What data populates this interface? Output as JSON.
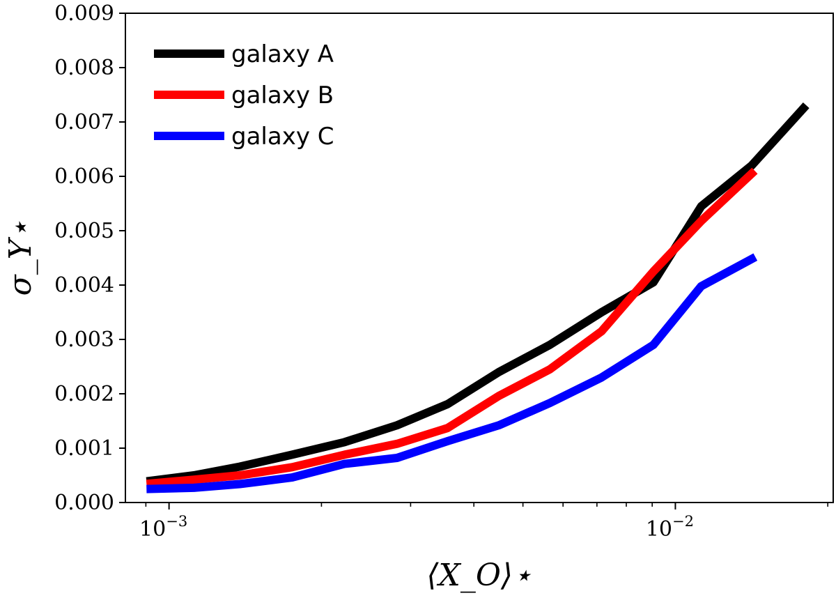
{
  "chart_data": {
    "type": "line",
    "title": "",
    "xscale": "log",
    "xlim": [
      0.00082,
      0.0205
    ],
    "ylim": [
      0,
      0.009
    ],
    "xlabel": "⟨X_O⟩⋆",
    "ylabel": "σ_Y⋆",
    "grid": false,
    "legend_position": "top-left",
    "x_major_ticks": [
      {
        "value": 0.001,
        "base": "10",
        "exp": "−3"
      },
      {
        "value": 0.01,
        "base": "10",
        "exp": "−2"
      }
    ],
    "x_minor_ticks": [
      0.0009,
      0.002,
      0.003,
      0.004,
      0.005,
      0.006,
      0.007,
      0.008,
      0.009,
      0.02
    ],
    "y_ticks": [
      {
        "value": 0.0,
        "label": "0.000"
      },
      {
        "value": 0.001,
        "label": "0.001"
      },
      {
        "value": 0.002,
        "label": "0.002"
      },
      {
        "value": 0.003,
        "label": "0.003"
      },
      {
        "value": 0.004,
        "label": "0.004"
      },
      {
        "value": 0.005,
        "label": "0.005"
      },
      {
        "value": 0.006,
        "label": "0.006"
      },
      {
        "value": 0.007,
        "label": "0.007"
      },
      {
        "value": 0.008,
        "label": "0.008"
      },
      {
        "value": 0.009,
        "label": "0.009"
      }
    ],
    "series": [
      {
        "name": "galaxy A",
        "color": "#000000",
        "x": [
          0.00092,
          0.00112,
          0.00138,
          0.00175,
          0.00222,
          0.00282,
          0.00355,
          0.00448,
          0.00565,
          0.00715,
          0.00905,
          0.01125,
          0.01415,
          0.0179
        ],
        "y": [
          0.0004,
          0.0005,
          0.00066,
          0.00088,
          0.00111,
          0.00142,
          0.00181,
          0.0024,
          0.0029,
          0.0035,
          0.00405,
          0.00545,
          0.0062,
          0.00725
        ]
      },
      {
        "name": "galaxy B",
        "color": "#ff0000",
        "x": [
          0.00092,
          0.00112,
          0.00138,
          0.00175,
          0.00222,
          0.00282,
          0.00355,
          0.00448,
          0.00565,
          0.00715,
          0.00905,
          0.01125,
          0.01415
        ],
        "y": [
          0.00035,
          0.00042,
          0.0005,
          0.00065,
          0.00088,
          0.00108,
          0.00137,
          0.00196,
          0.00245,
          0.00315,
          0.00425,
          0.00518,
          0.00605
        ]
      },
      {
        "name": "galaxy C",
        "color": "#0000ff",
        "x": [
          0.00092,
          0.00112,
          0.00138,
          0.00175,
          0.00222,
          0.00282,
          0.00355,
          0.00448,
          0.00565,
          0.00715,
          0.00905,
          0.01125,
          0.01415
        ],
        "y": [
          0.00025,
          0.00027,
          0.00034,
          0.00046,
          0.00071,
          0.00082,
          0.00113,
          0.00142,
          0.00183,
          0.0023,
          0.0029,
          0.00398,
          0.00448
        ]
      }
    ]
  }
}
